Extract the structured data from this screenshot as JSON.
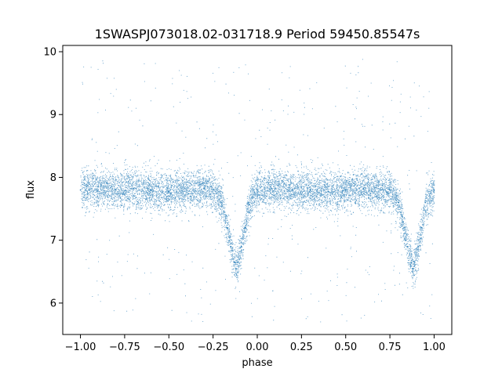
{
  "chart_data": {
    "type": "scatter",
    "title": "1SWASPJ073018.02-031718.9 Period 59450.85547s",
    "xlabel": "phase",
    "ylabel": "flux",
    "xlim": [
      -1.1,
      1.1
    ],
    "ylim": [
      5.5,
      10.1
    ],
    "xticks": [
      -1.0,
      -0.75,
      -0.5,
      -0.25,
      0.0,
      0.25,
      0.5,
      0.75,
      1.0
    ],
    "xtick_labels": [
      "−1.00",
      "−0.75",
      "−0.50",
      "−0.25",
      "0.00",
      "0.25",
      "0.50",
      "0.75",
      "1.00"
    ],
    "yticks": [
      6,
      7,
      8,
      9,
      10
    ],
    "ytick_labels": [
      "6",
      "7",
      "8",
      "9",
      "10"
    ],
    "grid": false,
    "point_color": "#1f77b4",
    "series": [
      {
        "points": [
          [
            -1.0,
            7.8
          ],
          [
            -0.9,
            7.85
          ],
          [
            -0.8,
            7.8
          ],
          [
            -0.7,
            7.82
          ],
          [
            -0.6,
            7.8
          ],
          [
            -0.5,
            7.78
          ],
          [
            -0.4,
            7.8
          ],
          [
            -0.3,
            7.82
          ],
          [
            -0.25,
            7.8
          ],
          [
            -0.2,
            7.6
          ],
          [
            -0.17,
            7.2
          ],
          [
            -0.15,
            6.9
          ],
          [
            -0.13,
            6.65
          ],
          [
            -0.12,
            6.55
          ],
          [
            -0.11,
            6.65
          ],
          [
            -0.09,
            6.9
          ],
          [
            -0.07,
            7.2
          ],
          [
            -0.05,
            7.6
          ],
          [
            0.0,
            7.8
          ],
          [
            0.1,
            7.82
          ],
          [
            0.2,
            7.8
          ],
          [
            0.3,
            7.8
          ],
          [
            0.4,
            7.78
          ],
          [
            0.5,
            7.8
          ],
          [
            0.6,
            7.82
          ],
          [
            0.7,
            7.8
          ],
          [
            0.75,
            7.8
          ],
          [
            0.8,
            7.6
          ],
          [
            0.83,
            7.2
          ],
          [
            0.85,
            6.9
          ],
          [
            0.87,
            6.65
          ],
          [
            0.88,
            6.55
          ],
          [
            0.89,
            6.65
          ],
          [
            0.91,
            6.9
          ],
          [
            0.93,
            7.2
          ],
          [
            0.95,
            7.6
          ],
          [
            1.0,
            7.8
          ]
        ]
      }
    ]
  }
}
